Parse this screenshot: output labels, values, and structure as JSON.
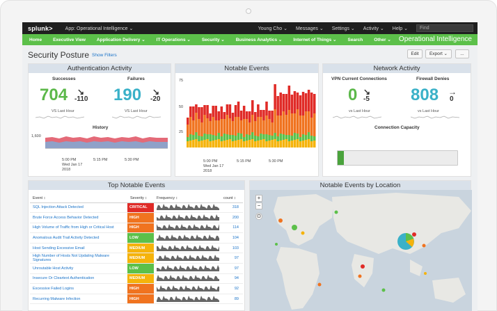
{
  "topbar": {
    "logo": "splunk>",
    "app": "App: Operational Intelligence ⌄",
    "user": "Young Cho ⌄",
    "messages": "Messages ⌄",
    "settings": "Settings ⌄",
    "activity": "Activity ⌄",
    "help": "Help ⌄",
    "find_placeholder": "Find"
  },
  "navbar": {
    "items": [
      "Home",
      "Executive View",
      "Application Delivery ⌄",
      "IT Operations ⌄",
      "Security ⌄",
      "Business Analytics ⌄",
      "Internet of Things ⌄",
      "Search",
      "Other ⌄"
    ],
    "brand": "Operational Intelligence"
  },
  "header": {
    "title": "Security Posture",
    "show_filters": "Show Filters",
    "edit": "Edit",
    "export": "Export ⌄",
    "more": "..."
  },
  "auth": {
    "title": "Authentication Activity",
    "successes_label": "Successes",
    "successes_value": "704",
    "successes_delta": "-110",
    "successes_arrow": "↘",
    "failures_label": "Failures",
    "failures_value": "190",
    "failures_delta": "-20",
    "failures_arrow": "↘",
    "vs_last_hour": "VS Last Hour",
    "history_label": "History",
    "y_tick": "1,600",
    "x_ticks": [
      "5:00 PM\nWed Jan 17\n2018",
      "5:15 PM",
      "5:30 PM"
    ]
  },
  "notable": {
    "title": "Notable Events",
    "y_ticks": [
      "75",
      "50",
      "25"
    ],
    "x_ticks": [
      "5:00 PM\nWed Jan 17\n2018",
      "5:15 PM",
      "5:30 PM"
    ]
  },
  "network": {
    "title": "Network Activity",
    "vpn_label": "VPN Current Connections",
    "vpn_value": "0",
    "vpn_delta": "-5",
    "vpn_arrow": "↘",
    "fw_label": "Firewall Denies",
    "fw_value": "808",
    "fw_delta": "0",
    "fw_arrow": "→",
    "vs_last_hour": "vs Last Hour",
    "capacity_label": "Connection Capacity",
    "capacity_fraction": 0.05
  },
  "top_events": {
    "title": "Top Notable Events",
    "headers": [
      "Event ↕",
      "Severity ↕",
      "Frequency ↕",
      "count ↕"
    ],
    "rows": [
      {
        "event": "SQL Injection Attack Detected",
        "severity": "CRITICAL",
        "count": "318"
      },
      {
        "event": "Brute Force Access Behavior Detected",
        "severity": "HIGH",
        "count": "200"
      },
      {
        "event": "High Volume of Traffic from High or Critical Host",
        "severity": "HIGH",
        "count": "114"
      },
      {
        "event": "Anomalous Audit Trail Activity Detected",
        "severity": "LOW",
        "count": "104"
      },
      {
        "event": "Host Sending Excessive Email",
        "severity": "MEDIUM",
        "count": "103"
      },
      {
        "event": "High Number of Hosts Not Updating Malware Signatures",
        "severity": "MEDIUM",
        "count": "97"
      },
      {
        "event": "Unroutable Host Activity",
        "severity": "LOW",
        "count": "97"
      },
      {
        "event": "Insecure Or Cleartext Authentication",
        "severity": "MEDIUM",
        "count": "94"
      },
      {
        "event": "Excessive Failed Logins",
        "severity": "HIGH",
        "count": "92"
      },
      {
        "event": "Recurring Malware Infection",
        "severity": "HIGH",
        "count": "89"
      }
    ]
  },
  "map": {
    "title": "Notable Events by Location",
    "zoom_in": "+",
    "zoom_out": "−"
  },
  "colors": {
    "critical": "#e02b27",
    "high": "#f0731f",
    "medium": "#f5b30b",
    "low": "#5cc04a",
    "green_number": "#5cb84a",
    "teal_number": "#3ab1c8"
  }
}
